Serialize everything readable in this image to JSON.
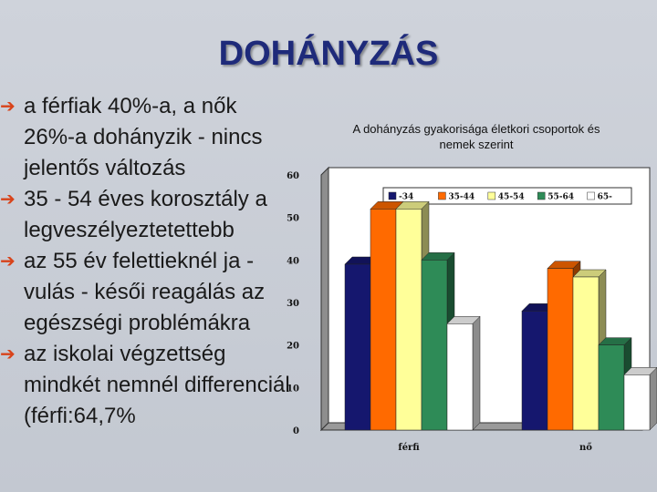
{
  "slide": {
    "title": "DOHÁNYZÁS",
    "bullets": [
      "a férfiak 40%-a, a nők 26%-a dohányzik - nincs jelentős változás",
      "35 - 54 éves korosztály a legveszélyeztetettebb",
      "az 55 év felettieknél ja -vulás - késői reagálás az egészségi problémákra",
      "az iskolai végzettség mindkét nemnél differenciál (férfi:64,7%"
    ],
    "bullet_icon": "arrow-right-icon"
  },
  "chart_data": {
    "type": "bar",
    "title": "A dohányzás gyakorisága életkori csoportok és nemek szerint",
    "categories": [
      "férfi",
      "nő"
    ],
    "ylim": [
      0,
      60
    ],
    "yticks": [
      "0",
      "10",
      "20",
      "30",
      "40",
      "50",
      "60"
    ],
    "legend_position": "top",
    "series": [
      {
        "name": "-34",
        "color": "#15176e",
        "values": [
          39,
          28
        ]
      },
      {
        "name": "35-44",
        "color": "#ff6a00",
        "values": [
          52,
          38
        ]
      },
      {
        "name": "45-54",
        "color": "#ffff99",
        "values": [
          52,
          36
        ]
      },
      {
        "name": "55-64",
        "color": "#2e8b57",
        "values": [
          40,
          20
        ]
      },
      {
        "name": "65-",
        "color": "#ffffff",
        "values": [
          25,
          13
        ]
      }
    ]
  }
}
